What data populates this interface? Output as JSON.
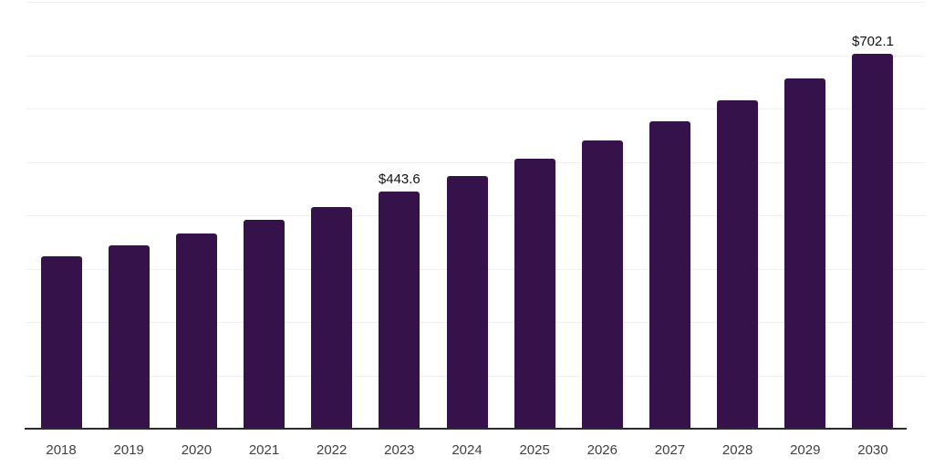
{
  "chart_data": {
    "type": "bar",
    "title": "",
    "xlabel": "",
    "ylabel": "",
    "categories": [
      "2018",
      "2019",
      "2020",
      "2021",
      "2022",
      "2023",
      "2024",
      "2025",
      "2026",
      "2027",
      "2028",
      "2029",
      "2030"
    ],
    "values": [
      322.9,
      344.0,
      366.6,
      390.6,
      416.2,
      443.6,
      473.6,
      505.7,
      539.9,
      576.5,
      615.5,
      657.2,
      702.1
    ],
    "data_labels": [
      {
        "category": "2023",
        "text": "$443.6"
      },
      {
        "category": "2030",
        "text": "$702.1"
      }
    ],
    "ylim": [
      0,
      800
    ],
    "grid_step": 100,
    "grid": "horizontal-only",
    "y_axis_tick_labels_shown": false,
    "legend": "none"
  },
  "colors": {
    "bar": "#351249",
    "gridline": "#f0f0f0",
    "axis_line": "#2b2b2b",
    "tick_label": "#404040",
    "data_label": "#111111",
    "background": "#ffffff"
  }
}
